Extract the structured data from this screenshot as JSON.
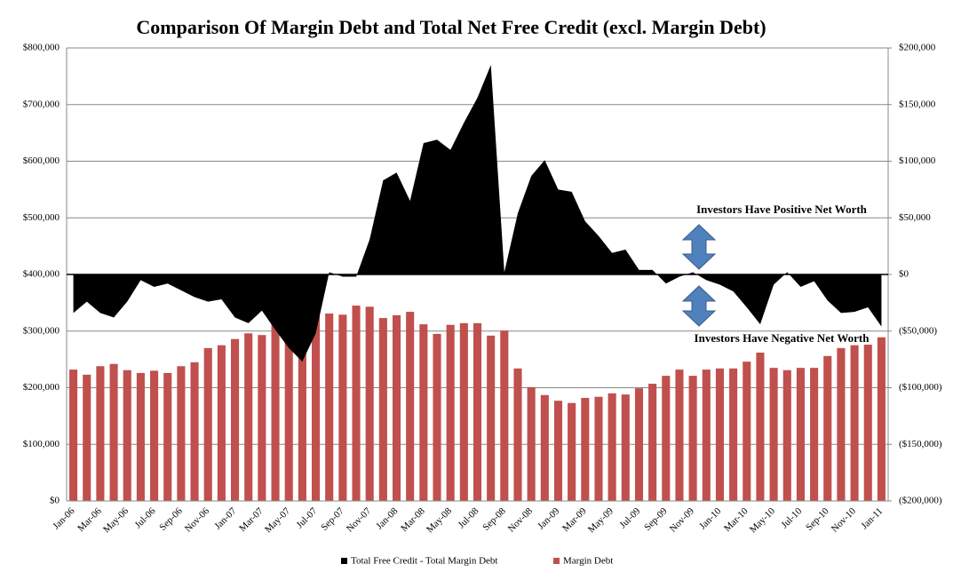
{
  "chart_data": {
    "type": "bar+area",
    "title": "Comparison  Of Margin Debt and Total Net Free Credit (excl. Margin Debt)",
    "categories": [
      "Jan-06",
      null,
      "Mar-06",
      null,
      "May-06",
      null,
      "Jul-06",
      null,
      "Sep-06",
      null,
      "Nov-06",
      null,
      "Jan-07",
      null,
      "Mar-07",
      null,
      "May-07",
      null,
      "Jul-07",
      null,
      "Sep-07",
      null,
      "Nov-07",
      null,
      "Jan-08",
      null,
      "Mar-08",
      null,
      "May-08",
      null,
      "Jul-08",
      null,
      "Sep-08",
      null,
      "Nov-08",
      null,
      "Jan-09",
      null,
      "Mar-09",
      null,
      "May-09",
      null,
      "Jul-09",
      null,
      "Sep-09",
      null,
      "Nov-09",
      null,
      "Jan-10",
      null,
      "Mar-10",
      null,
      "May-10",
      null,
      "Jul-10",
      null,
      "Sep-10",
      null,
      "Nov-10",
      null,
      "Jan-11"
    ],
    "series": [
      {
        "name": "Total Free Credit - Total Margin Debt",
        "color": "#000000",
        "type": "area",
        "axis": "y2",
        "values": [
          -34000,
          -24000,
          -34000,
          -38000,
          -24000,
          -5000,
          -11000,
          -8000,
          -14000,
          -20000,
          -24000,
          -22000,
          -38000,
          -43000,
          -32000,
          -49000,
          -65000,
          -77000,
          -52000,
          2000,
          -2000,
          -2000,
          31000,
          83000,
          90000,
          65000,
          116000,
          119000,
          110000,
          134000,
          156000,
          185000,
          2000,
          54000,
          87000,
          101000,
          75000,
          73000,
          47000,
          34000,
          19000,
          22000,
          4000,
          4000,
          -8000,
          -2000,
          2000,
          -5000,
          -9000,
          -15000,
          -29000,
          -44000,
          -9000,
          2000,
          -11000,
          -6000,
          -23000,
          -34000,
          -33000,
          -29000,
          -46000
        ]
      },
      {
        "name": "Margin Debt",
        "color": "#c0504d",
        "type": "bar",
        "values": [
          232000,
          223000,
          238000,
          242000,
          231000,
          226000,
          230000,
          226000,
          238000,
          245000,
          270000,
          275000,
          286000,
          296000,
          293000,
          318000,
          353000,
          378000,
          381000,
          331000,
          329000,
          345000,
          343000,
          323000,
          328000,
          334000,
          312000,
          295000,
          311000,
          314000,
          314000,
          292000,
          301000,
          234000,
          201000,
          187000,
          177000,
          173000,
          182000,
          184000,
          190000,
          188000,
          199000,
          207000,
          221000,
          232000,
          221000,
          232000,
          234000,
          234000,
          246000,
          262000,
          235000,
          231000,
          235000,
          235000,
          256000,
          270000,
          275000,
          276000,
          289000
        ]
      }
    ],
    "ylim": [
      0,
      800000
    ],
    "yticks": [
      {
        "value": 0,
        "label": "$0"
      },
      {
        "value": 100000,
        "label": "$100,000"
      },
      {
        "value": 200000,
        "label": "$200,000"
      },
      {
        "value": 300000,
        "label": "$300,000"
      },
      {
        "value": 400000,
        "label": "$400,000"
      },
      {
        "value": 500000,
        "label": "$500,000"
      },
      {
        "value": 600000,
        "label": "$600,000"
      },
      {
        "value": 700000,
        "label": "$700,000"
      },
      {
        "value": 800000,
        "label": "$800,000"
      }
    ],
    "y2lim": [
      -200000,
      200000
    ],
    "y2ticks": [
      {
        "value": -200000,
        "label": "($200,000)"
      },
      {
        "value": -150000,
        "label": "($150,000)"
      },
      {
        "value": -100000,
        "label": "($100,000)"
      },
      {
        "value": -50000,
        "label": "($50,000)"
      },
      {
        "value": 0,
        "label": "$0"
      },
      {
        "value": 50000,
        "label": "$50,000"
      },
      {
        "value": 100000,
        "label": "$100,000"
      },
      {
        "value": 150000,
        "label": "$150,000"
      },
      {
        "value": 200000,
        "label": "$200,000"
      }
    ],
    "grid": true,
    "legend": "bottom",
    "annotations": [
      {
        "text": "Investors Have Positive  Net Worth",
        "color": "#4f6228"
      },
      {
        "text": "Investors Have Negative Net Worth",
        "color": "#ff0000"
      }
    ]
  }
}
